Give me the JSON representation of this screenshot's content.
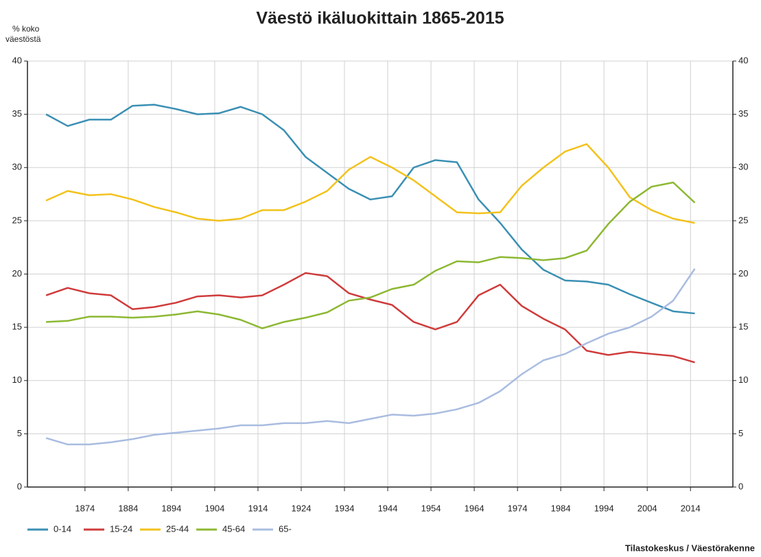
{
  "chart_data": {
    "type": "line",
    "title": "Väestö ikäluokittain 1865-2015",
    "ylabel": [
      "% koko",
      "väestöstä"
    ],
    "source": "Tilastokeskus / Väestörakenne",
    "x": [
      1865,
      1870,
      1875,
      1880,
      1885,
      1890,
      1895,
      1900,
      1905,
      1910,
      1915,
      1920,
      1925,
      1930,
      1935,
      1940,
      1945,
      1950,
      1955,
      1960,
      1965,
      1970,
      1975,
      1980,
      1985,
      1990,
      1995,
      2000,
      2005,
      2010,
      2015
    ],
    "series": [
      {
        "name": "0-14",
        "color": "#3a8fb3",
        "values": [
          35.0,
          33.9,
          34.5,
          34.5,
          35.8,
          35.9,
          35.5,
          35.0,
          35.1,
          35.7,
          35.0,
          33.5,
          31.0,
          29.5,
          28.0,
          27.0,
          27.3,
          30.0,
          30.7,
          30.5,
          27.0,
          24.8,
          22.3,
          20.4,
          19.4,
          19.3,
          19.0,
          18.1,
          17.3,
          16.5,
          16.3
        ]
      },
      {
        "name": "15-24",
        "color": "#cf3b3b",
        "values": [
          18.0,
          18.7,
          18.2,
          18.0,
          16.7,
          16.9,
          17.3,
          17.9,
          18.0,
          17.8,
          18.0,
          19.0,
          20.1,
          19.8,
          18.2,
          17.6,
          17.1,
          15.5,
          14.8,
          15.5,
          18.0,
          19.0,
          17.0,
          15.8,
          14.8,
          12.8,
          12.4,
          12.7,
          12.5,
          12.3,
          11.7
        ]
      },
      {
        "name": "25-44",
        "color": "#f2c21b",
        "values": [
          26.9,
          27.8,
          27.4,
          27.5,
          27.0,
          26.3,
          25.8,
          25.2,
          25.0,
          25.2,
          26.0,
          26.0,
          26.8,
          27.8,
          29.8,
          31.0,
          30.0,
          28.8,
          27.3,
          25.8,
          25.7,
          25.8,
          28.3,
          30.0,
          31.5,
          32.2,
          30.0,
          27.2,
          26.0,
          25.2,
          24.8
        ]
      },
      {
        "name": "45-64",
        "color": "#8cb832",
        "values": [
          15.5,
          15.6,
          16.0,
          16.0,
          15.9,
          16.0,
          16.2,
          16.5,
          16.2,
          15.7,
          14.9,
          15.5,
          15.9,
          16.4,
          17.5,
          17.8,
          18.6,
          19.0,
          20.3,
          21.2,
          21.1,
          21.6,
          21.5,
          21.3,
          21.5,
          22.2,
          24.7,
          26.8,
          28.2,
          28.6,
          26.7
        ]
      },
      {
        "name": "65-",
        "color": "#a9bce0",
        "values": [
          4.6,
          4.0,
          4.0,
          4.2,
          4.5,
          4.9,
          5.1,
          5.3,
          5.5,
          5.8,
          5.8,
          6.0,
          6.0,
          6.2,
          6.0,
          6.4,
          6.8,
          6.7,
          6.9,
          7.3,
          7.9,
          9.0,
          10.6,
          11.9,
          12.5,
          13.5,
          14.4,
          15.0,
          16.0,
          17.5,
          20.5
        ]
      }
    ],
    "xlim": [
      1860.7,
      2023.8
    ],
    "xticks": [
      1874,
      1884,
      1894,
      1904,
      1914,
      1924,
      1934,
      1944,
      1954,
      1964,
      1974,
      1984,
      1994,
      2004,
      2014
    ],
    "ylim": [
      0,
      40
    ],
    "yticks": [
      0,
      5,
      10,
      15,
      20,
      25,
      30,
      35,
      40
    ],
    "grid": true
  }
}
